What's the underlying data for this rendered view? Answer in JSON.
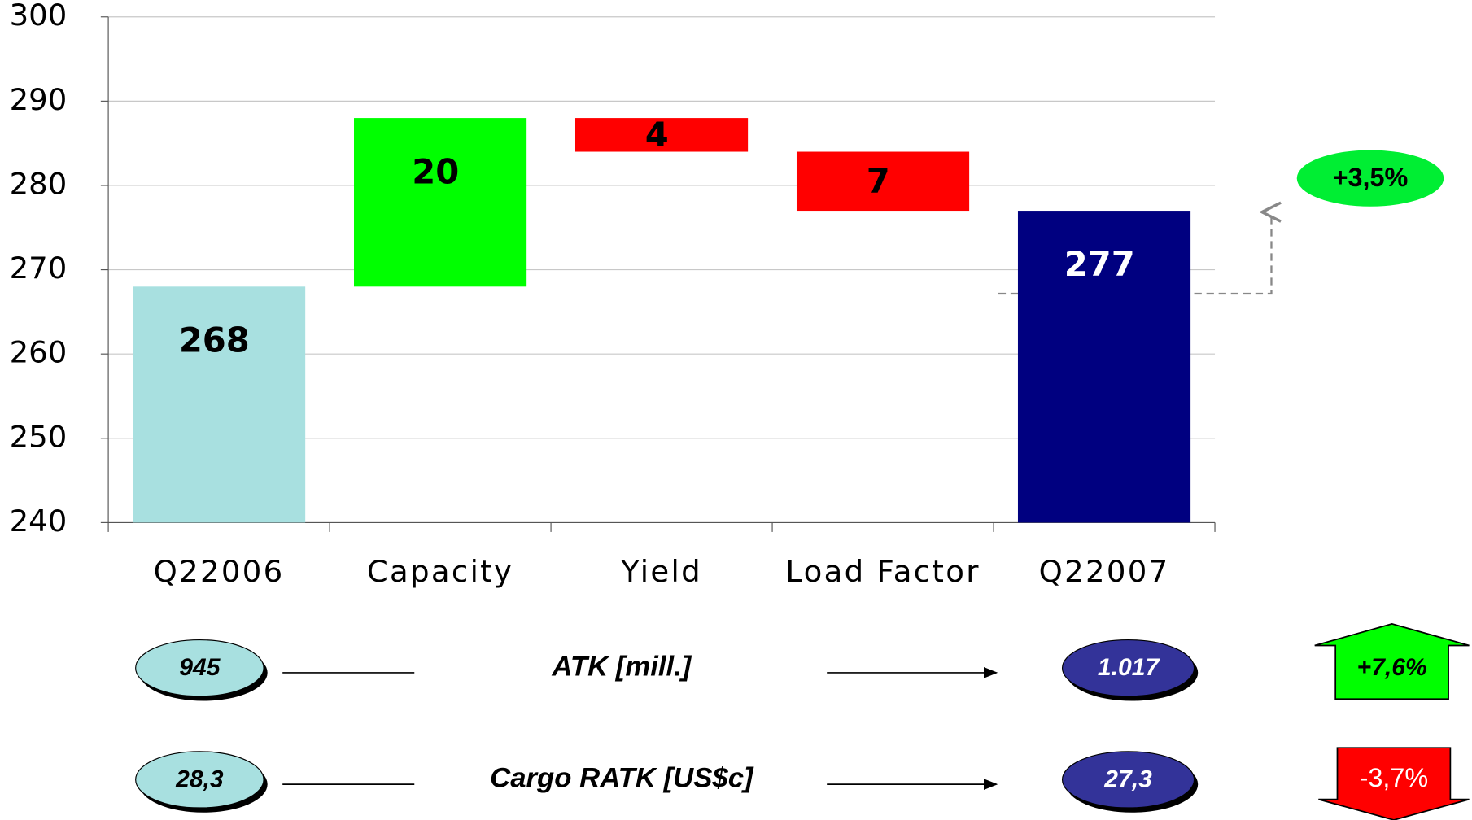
{
  "chart_data": {
    "type": "waterfall",
    "categories": [
      "Q22006",
      "Capacity",
      "Yield",
      "Load Factor",
      "Q22007"
    ],
    "values": [
      268,
      20,
      -4,
      -7,
      277
    ],
    "value_labels": [
      "268",
      "20",
      "4",
      "7",
      "277"
    ],
    "measures": [
      "absolute",
      "relative",
      "relative",
      "relative",
      "total"
    ],
    "colors": [
      "#a8e0e0",
      "#00ff00",
      "#ff0000",
      "#ff0000",
      "#000080"
    ],
    "ylim": [
      240,
      300
    ],
    "yticks": [
      240,
      250,
      260,
      270,
      280,
      290,
      300
    ],
    "grid": true,
    "annotations": [
      "+3,5%"
    ],
    "kpis": [
      {
        "label": "ATK [mill.]",
        "start": "945",
        "end": "1.017",
        "change": "+7,6%",
        "direction": "up"
      },
      {
        "label": "Cargo RATK [US$c]",
        "start": "28,3",
        "end": "27,3",
        "change": "-3,7%",
        "direction": "down"
      }
    ]
  }
}
